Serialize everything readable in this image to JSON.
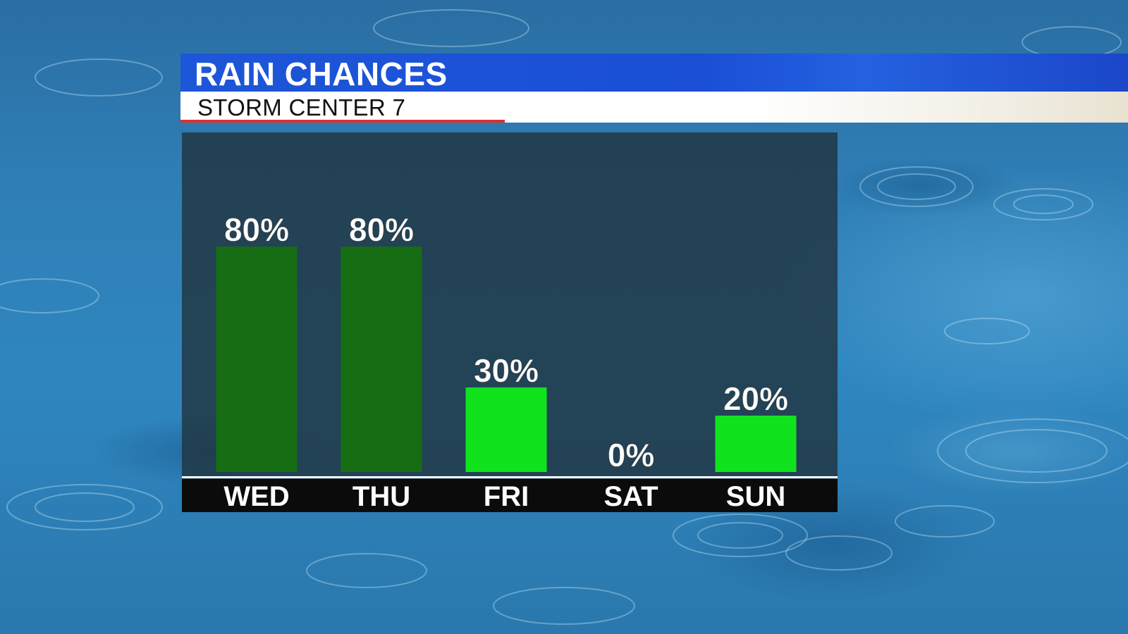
{
  "header": {
    "title": "RAIN CHANCES",
    "subtitle": "STORM CENTER 7"
  },
  "colors": {
    "bar_high": "#166d14",
    "bar_low": "#10e31d",
    "banner_blue": "#1a4fd6",
    "banner_accent": "#e0312a"
  },
  "chart_data": {
    "type": "bar",
    "categories": [
      "WED",
      "THU",
      "FRI",
      "SAT",
      "SUN"
    ],
    "values": [
      80,
      80,
      30,
      0,
      20
    ],
    "value_labels": [
      "80%",
      "80%",
      "30%",
      "0%",
      "20%"
    ],
    "title": "RAIN CHANCES",
    "ylim": [
      0,
      100
    ],
    "grid": false,
    "legend": "none"
  }
}
